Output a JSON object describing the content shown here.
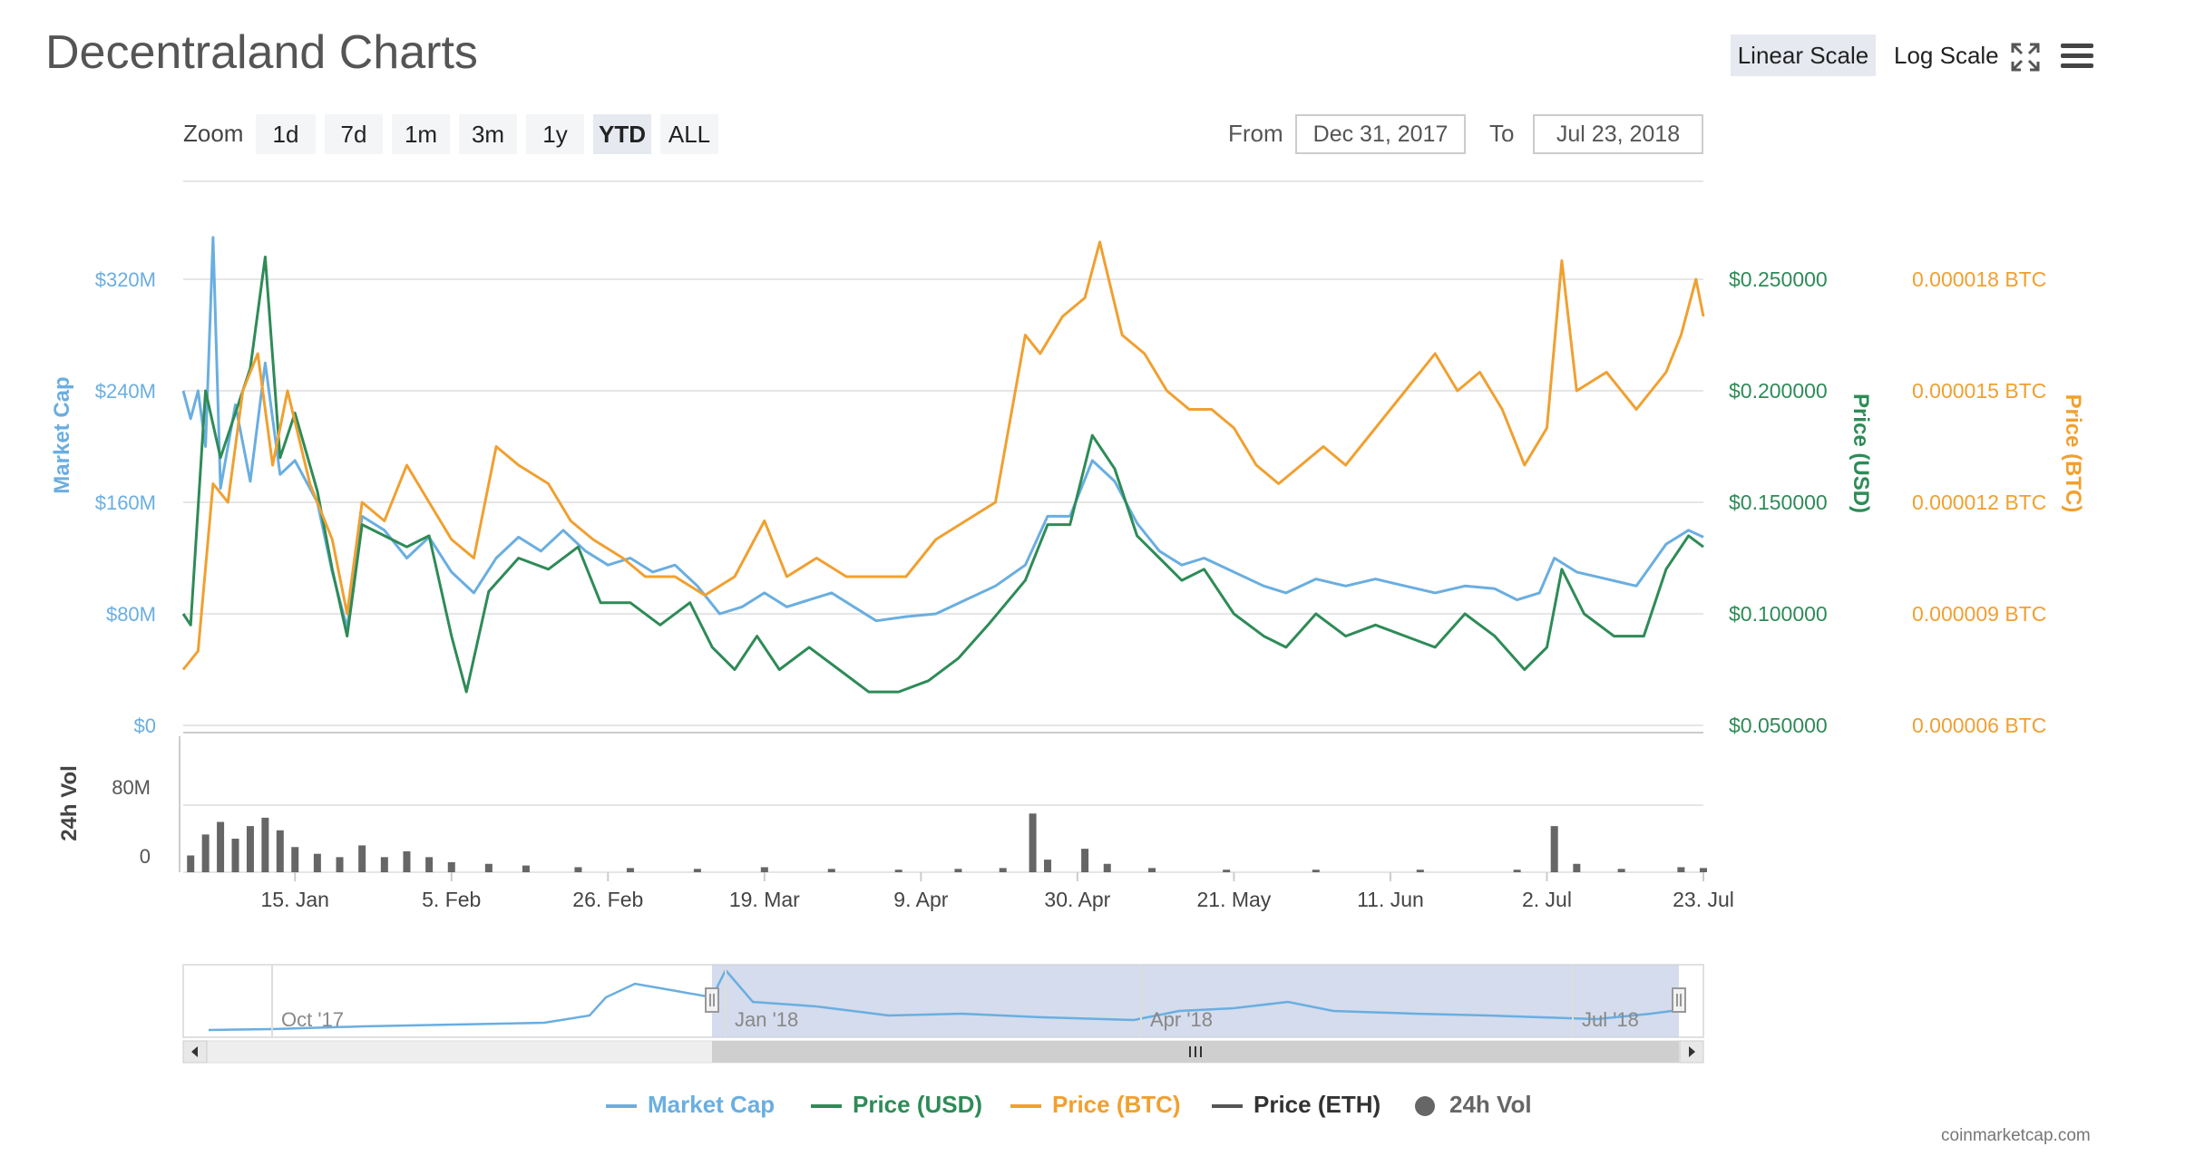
{
  "title": "Decentraland Charts",
  "scale_buttons": {
    "linear": "Linear Scale",
    "log": "Log Scale",
    "active": "linear"
  },
  "icons": {
    "fullscreen": "fullscreen-icon",
    "menu": "menu-icon"
  },
  "zoom": {
    "label": "Zoom",
    "buttons": [
      "1d",
      "7d",
      "1m",
      "3m",
      "1y",
      "YTD",
      "ALL"
    ],
    "active": "YTD"
  },
  "range": {
    "from_label": "From",
    "from_value": "Dec 31, 2017",
    "to_label": "To",
    "to_value": "Jul 23, 2018"
  },
  "colors": {
    "market_cap": "#6aaee0",
    "price_usd": "#2e8b57",
    "price_btc": "#f0a030",
    "price_eth": "#555555",
    "volume": "#666666",
    "nav_fill": "#c9d3e8"
  },
  "legend": [
    {
      "name": "Market Cap",
      "color": "#6aaee0",
      "marker": "line"
    },
    {
      "name": "Price (USD)",
      "color": "#2e8b57",
      "marker": "line"
    },
    {
      "name": "Price (BTC)",
      "color": "#f0a030",
      "marker": "line"
    },
    {
      "name": "Price (ETH)",
      "color": "#555555",
      "marker": "line"
    },
    {
      "name": "24h Vol",
      "color": "#666666",
      "marker": "dot"
    }
  ],
  "credit": "coinmarketcap.com",
  "chart_data": {
    "type": "line",
    "title": "Decentraland Charts",
    "x_start": "2017-12-31",
    "x_end": "2018-07-23",
    "x_ticks": [
      "15. Jan",
      "5. Feb",
      "26. Feb",
      "19. Mar",
      "9. Apr",
      "30. Apr",
      "21. May",
      "11. Jun",
      "2. Jul",
      "23. Jul"
    ],
    "axes": {
      "market_cap": {
        "label": "Market Cap",
        "ticks": [
          "$0",
          "$80M",
          "$160M",
          "$240M",
          "$320M"
        ],
        "range": [
          0,
          320
        ]
      },
      "price_usd": {
        "label": "Price (USD)",
        "ticks": [
          "$0.050000",
          "$0.100000",
          "$0.150000",
          "$0.200000",
          "$0.250000"
        ],
        "range": [
          0.05,
          0.25
        ]
      },
      "price_btc": {
        "label": "Price (BTC)",
        "ticks": [
          "0.000006 BTC",
          "0.000009 BTC",
          "0.000012 BTC",
          "0.000015 BTC",
          "0.000018 BTC"
        ],
        "range": [
          6e-06,
          1.8e-05
        ]
      },
      "volume": {
        "label": "24h Vol",
        "ticks": [
          "0",
          "80M"
        ],
        "range": [
          0,
          80
        ]
      }
    },
    "grid": true,
    "legend_position": "bottom",
    "series": [
      {
        "name": "Market Cap",
        "axis": "market_cap",
        "unit": "$M",
        "points": [
          [
            "2017-12-31",
            240
          ],
          [
            "2018-01-01",
            220
          ],
          [
            "2018-01-02",
            240
          ],
          [
            "2018-01-03",
            200
          ],
          [
            "2018-01-04",
            350
          ],
          [
            "2018-01-05",
            170
          ],
          [
            "2018-01-07",
            230
          ],
          [
            "2018-01-09",
            175
          ],
          [
            "2018-01-11",
            260
          ],
          [
            "2018-01-13",
            180
          ],
          [
            "2018-01-15",
            190
          ],
          [
            "2018-01-18",
            160
          ],
          [
            "2018-01-20",
            110
          ],
          [
            "2018-01-22",
            70
          ],
          [
            "2018-01-24",
            150
          ],
          [
            "2018-01-27",
            140
          ],
          [
            "2018-01-30",
            120
          ],
          [
            "2018-02-02",
            135
          ],
          [
            "2018-02-05",
            110
          ],
          [
            "2018-02-08",
            95
          ],
          [
            "2018-02-11",
            120
          ],
          [
            "2018-02-14",
            135
          ],
          [
            "2018-02-17",
            125
          ],
          [
            "2018-02-20",
            140
          ],
          [
            "2018-02-23",
            125
          ],
          [
            "2018-02-26",
            115
          ],
          [
            "2018-03-01",
            120
          ],
          [
            "2018-03-04",
            110
          ],
          [
            "2018-03-07",
            115
          ],
          [
            "2018-03-10",
            100
          ],
          [
            "2018-03-13",
            80
          ],
          [
            "2018-03-16",
            85
          ],
          [
            "2018-03-19",
            95
          ],
          [
            "2018-03-22",
            85
          ],
          [
            "2018-03-25",
            90
          ],
          [
            "2018-03-28",
            95
          ],
          [
            "2018-03-31",
            85
          ],
          [
            "2018-04-03",
            75
          ],
          [
            "2018-04-07",
            78
          ],
          [
            "2018-04-11",
            80
          ],
          [
            "2018-04-15",
            90
          ],
          [
            "2018-04-19",
            100
          ],
          [
            "2018-04-23",
            115
          ],
          [
            "2018-04-26",
            150
          ],
          [
            "2018-04-29",
            150
          ],
          [
            "2018-05-02",
            190
          ],
          [
            "2018-05-05",
            175
          ],
          [
            "2018-05-08",
            145
          ],
          [
            "2018-05-11",
            125
          ],
          [
            "2018-05-14",
            115
          ],
          [
            "2018-05-17",
            120
          ],
          [
            "2018-05-21",
            110
          ],
          [
            "2018-05-25",
            100
          ],
          [
            "2018-05-28",
            95
          ],
          [
            "2018-06-01",
            105
          ],
          [
            "2018-06-05",
            100
          ],
          [
            "2018-06-09",
            105
          ],
          [
            "2018-06-13",
            100
          ],
          [
            "2018-06-17",
            95
          ],
          [
            "2018-06-21",
            100
          ],
          [
            "2018-06-25",
            98
          ],
          [
            "2018-06-28",
            90
          ],
          [
            "2018-07-01",
            95
          ],
          [
            "2018-07-03",
            120
          ],
          [
            "2018-07-06",
            110
          ],
          [
            "2018-07-10",
            105
          ],
          [
            "2018-07-14",
            100
          ],
          [
            "2018-07-18",
            130
          ],
          [
            "2018-07-21",
            140
          ],
          [
            "2018-07-23",
            135
          ]
        ]
      },
      {
        "name": "Price (USD)",
        "axis": "price_usd",
        "unit": "USD",
        "points": [
          [
            "2017-12-31",
            0.1
          ],
          [
            "2018-01-01",
            0.095
          ],
          [
            "2018-01-03",
            0.2
          ],
          [
            "2018-01-05",
            0.17
          ],
          [
            "2018-01-07",
            0.19
          ],
          [
            "2018-01-09",
            0.21
          ],
          [
            "2018-01-11",
            0.26
          ],
          [
            "2018-01-13",
            0.17
          ],
          [
            "2018-01-15",
            0.19
          ],
          [
            "2018-01-18",
            0.155
          ],
          [
            "2018-01-20",
            0.12
          ],
          [
            "2018-01-22",
            0.09
          ],
          [
            "2018-01-24",
            0.14
          ],
          [
            "2018-01-27",
            0.135
          ],
          [
            "2018-01-30",
            0.13
          ],
          [
            "2018-02-02",
            0.135
          ],
          [
            "2018-02-05",
            0.09
          ],
          [
            "2018-02-07",
            0.065
          ],
          [
            "2018-02-10",
            0.11
          ],
          [
            "2018-02-14",
            0.125
          ],
          [
            "2018-02-18",
            0.12
          ],
          [
            "2018-02-22",
            0.13
          ],
          [
            "2018-02-25",
            0.105
          ],
          [
            "2018-03-01",
            0.105
          ],
          [
            "2018-03-05",
            0.095
          ],
          [
            "2018-03-09",
            0.105
          ],
          [
            "2018-03-12",
            0.085
          ],
          [
            "2018-03-15",
            0.075
          ],
          [
            "2018-03-18",
            0.09
          ],
          [
            "2018-03-21",
            0.075
          ],
          [
            "2018-03-25",
            0.085
          ],
          [
            "2018-03-29",
            0.075
          ],
          [
            "2018-04-02",
            0.065
          ],
          [
            "2018-04-06",
            0.065
          ],
          [
            "2018-04-10",
            0.07
          ],
          [
            "2018-04-14",
            0.08
          ],
          [
            "2018-04-18",
            0.095
          ],
          [
            "2018-04-23",
            0.115
          ],
          [
            "2018-04-26",
            0.14
          ],
          [
            "2018-04-29",
            0.14
          ],
          [
            "2018-05-02",
            0.18
          ],
          [
            "2018-05-05",
            0.165
          ],
          [
            "2018-05-08",
            0.135
          ],
          [
            "2018-05-11",
            0.125
          ],
          [
            "2018-05-14",
            0.115
          ],
          [
            "2018-05-17",
            0.12
          ],
          [
            "2018-05-21",
            0.1
          ],
          [
            "2018-05-25",
            0.09
          ],
          [
            "2018-05-28",
            0.085
          ],
          [
            "2018-06-01",
            0.1
          ],
          [
            "2018-06-05",
            0.09
          ],
          [
            "2018-06-09",
            0.095
          ],
          [
            "2018-06-13",
            0.09
          ],
          [
            "2018-06-17",
            0.085
          ],
          [
            "2018-06-21",
            0.1
          ],
          [
            "2018-06-25",
            0.09
          ],
          [
            "2018-06-29",
            0.075
          ],
          [
            "2018-07-02",
            0.085
          ],
          [
            "2018-07-04",
            0.12
          ],
          [
            "2018-07-07",
            0.1
          ],
          [
            "2018-07-11",
            0.09
          ],
          [
            "2018-07-15",
            0.09
          ],
          [
            "2018-07-18",
            0.12
          ],
          [
            "2018-07-21",
            0.135
          ],
          [
            "2018-07-23",
            0.13
          ]
        ]
      },
      {
        "name": "Price (BTC)",
        "axis": "price_btc",
        "unit": "BTC",
        "points": [
          [
            "2017-12-31",
            7.5e-06
          ],
          [
            "2018-01-02",
            8e-06
          ],
          [
            "2018-01-04",
            1.25e-05
          ],
          [
            "2018-01-06",
            1.2e-05
          ],
          [
            "2018-01-08",
            1.5e-05
          ],
          [
            "2018-01-10",
            1.6e-05
          ],
          [
            "2018-01-12",
            1.3e-05
          ],
          [
            "2018-01-14",
            1.5e-05
          ],
          [
            "2018-01-17",
            1.25e-05
          ],
          [
            "2018-01-20",
            1.1e-05
          ],
          [
            "2018-01-22",
            9e-06
          ],
          [
            "2018-01-24",
            1.2e-05
          ],
          [
            "2018-01-27",
            1.15e-05
          ],
          [
            "2018-01-30",
            1.3e-05
          ],
          [
            "2018-02-02",
            1.2e-05
          ],
          [
            "2018-02-05",
            1.1e-05
          ],
          [
            "2018-02-08",
            1.05e-05
          ],
          [
            "2018-02-11",
            1.35e-05
          ],
          [
            "2018-02-14",
            1.3e-05
          ],
          [
            "2018-02-18",
            1.25e-05
          ],
          [
            "2018-02-21",
            1.15e-05
          ],
          [
            "2018-02-24",
            1.1e-05
          ],
          [
            "2018-02-28",
            1.05e-05
          ],
          [
            "2018-03-03",
            1e-05
          ],
          [
            "2018-03-07",
            1e-05
          ],
          [
            "2018-03-11",
            9.5e-06
          ],
          [
            "2018-03-15",
            1e-05
          ],
          [
            "2018-03-19",
            1.15e-05
          ],
          [
            "2018-03-22",
            1e-05
          ],
          [
            "2018-03-26",
            1.05e-05
          ],
          [
            "2018-03-30",
            1e-05
          ],
          [
            "2018-04-03",
            1e-05
          ],
          [
            "2018-04-07",
            1e-05
          ],
          [
            "2018-04-11",
            1.1e-05
          ],
          [
            "2018-04-15",
            1.15e-05
          ],
          [
            "2018-04-19",
            1.2e-05
          ],
          [
            "2018-04-23",
            1.65e-05
          ],
          [
            "2018-04-25",
            1.6e-05
          ],
          [
            "2018-04-28",
            1.7e-05
          ],
          [
            "2018-05-01",
            1.75e-05
          ],
          [
            "2018-05-03",
            1.9e-05
          ],
          [
            "2018-05-06",
            1.65e-05
          ],
          [
            "2018-05-09",
            1.6e-05
          ],
          [
            "2018-05-12",
            1.5e-05
          ],
          [
            "2018-05-15",
            1.45e-05
          ],
          [
            "2018-05-18",
            1.45e-05
          ],
          [
            "2018-05-21",
            1.4e-05
          ],
          [
            "2018-05-24",
            1.3e-05
          ],
          [
            "2018-05-27",
            1.25e-05
          ],
          [
            "2018-05-30",
            1.3e-05
          ],
          [
            "2018-06-02",
            1.35e-05
          ],
          [
            "2018-06-05",
            1.3e-05
          ],
          [
            "2018-06-09",
            1.4e-05
          ],
          [
            "2018-06-13",
            1.5e-05
          ],
          [
            "2018-06-17",
            1.6e-05
          ],
          [
            "2018-06-20",
            1.5e-05
          ],
          [
            "2018-06-23",
            1.55e-05
          ],
          [
            "2018-06-26",
            1.45e-05
          ],
          [
            "2018-06-29",
            1.3e-05
          ],
          [
            "2018-07-02",
            1.4e-05
          ],
          [
            "2018-07-04",
            1.85e-05
          ],
          [
            "2018-07-06",
            1.5e-05
          ],
          [
            "2018-07-10",
            1.55e-05
          ],
          [
            "2018-07-14",
            1.45e-05
          ],
          [
            "2018-07-18",
            1.55e-05
          ],
          [
            "2018-07-20",
            1.65e-05
          ],
          [
            "2018-07-22",
            1.8e-05
          ],
          [
            "2018-07-23",
            1.7e-05
          ]
        ]
      },
      {
        "name": "24h Vol",
        "axis": "volume",
        "unit": "M",
        "type": "bar",
        "points": [
          [
            "2018-01-01",
            20
          ],
          [
            "2018-01-03",
            45
          ],
          [
            "2018-01-05",
            60
          ],
          [
            "2018-01-07",
            40
          ],
          [
            "2018-01-09",
            55
          ],
          [
            "2018-01-11",
            65
          ],
          [
            "2018-01-13",
            50
          ],
          [
            "2018-01-15",
            30
          ],
          [
            "2018-01-18",
            22
          ],
          [
            "2018-01-21",
            18
          ],
          [
            "2018-01-24",
            32
          ],
          [
            "2018-01-27",
            18
          ],
          [
            "2018-01-30",
            25
          ],
          [
            "2018-02-02",
            18
          ],
          [
            "2018-02-05",
            12
          ],
          [
            "2018-02-10",
            10
          ],
          [
            "2018-02-15",
            8
          ],
          [
            "2018-02-22",
            6
          ],
          [
            "2018-03-01",
            5
          ],
          [
            "2018-03-10",
            4
          ],
          [
            "2018-03-19",
            6
          ],
          [
            "2018-03-28",
            4
          ],
          [
            "2018-04-06",
            3
          ],
          [
            "2018-04-14",
            4
          ],
          [
            "2018-04-20",
            5
          ],
          [
            "2018-04-24",
            70
          ],
          [
            "2018-04-26",
            15
          ],
          [
            "2018-05-01",
            28
          ],
          [
            "2018-05-04",
            10
          ],
          [
            "2018-05-10",
            5
          ],
          [
            "2018-05-20",
            3
          ],
          [
            "2018-06-01",
            3
          ],
          [
            "2018-06-15",
            3
          ],
          [
            "2018-06-28",
            3
          ],
          [
            "2018-07-03",
            55
          ],
          [
            "2018-07-06",
            10
          ],
          [
            "2018-07-12",
            4
          ],
          [
            "2018-07-20",
            6
          ],
          [
            "2018-07-23",
            5
          ]
        ]
      }
    ],
    "navigator": {
      "ticks": [
        "Oct '17",
        "Jan '18",
        "Apr '18",
        "Jul '18"
      ],
      "selected_from": "2017-12-31",
      "selected_to": "2018-07-23"
    }
  }
}
